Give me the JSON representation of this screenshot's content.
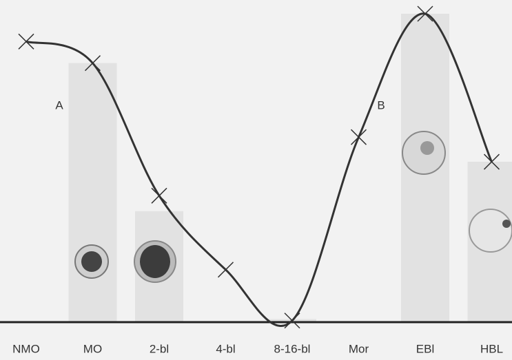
{
  "chart_data": {
    "type": "bar",
    "categories": [
      "NMO",
      "MO",
      "2-bl",
      "4-bl",
      "8-16-bl",
      "Mor",
      "EBl",
      "HBL"
    ],
    "ylim": [
      0,
      100
    ],
    "annotations": [
      "A",
      "B"
    ],
    "series": [
      {
        "type": "bar",
        "color": "#e2e2e2",
        "values": [
          null,
          84,
          36,
          null,
          1,
          null,
          100,
          52
        ]
      },
      {
        "type": "line",
        "color": "#333333",
        "values": [
          91,
          84,
          41,
          17,
          0.5,
          60,
          100,
          52
        ]
      }
    ]
  }
}
